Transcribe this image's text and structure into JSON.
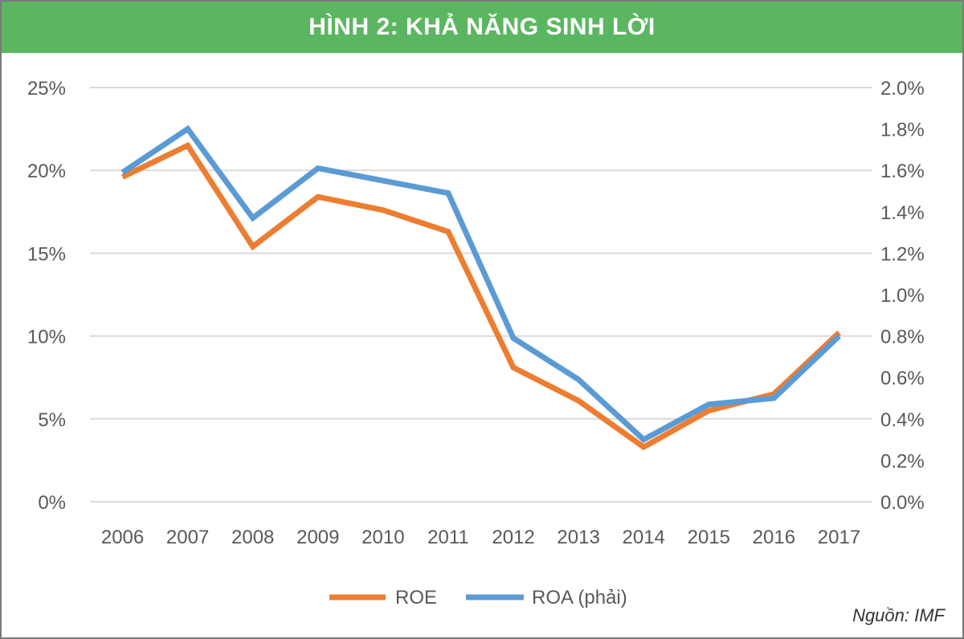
{
  "title": "HÌNH 2: KHẢ NĂNG SINH LỜI",
  "source": "Nguồn: IMF",
  "colors": {
    "header": "#5cb661",
    "ROE": "#ed7d31",
    "ROA": "#5b9bd5",
    "grid": "#d9d9d9"
  },
  "chart_data": {
    "type": "line",
    "title": "HÌNH 2: KHẢ NĂNG SINH LỜI",
    "categories": [
      "2006",
      "2007",
      "2008",
      "2009",
      "2010",
      "2011",
      "2012",
      "2013",
      "2014",
      "2015",
      "2016",
      "2017"
    ],
    "series": [
      {
        "name": "ROE",
        "axis": "left",
        "values": [
          19.6,
          21.5,
          15.4,
          18.4,
          17.6,
          16.3,
          8.1,
          6.1,
          3.3,
          5.5,
          6.5,
          10.2
        ]
      },
      {
        "name": "ROA (phải)",
        "axis": "right",
        "values": [
          1.59,
          1.8,
          1.37,
          1.61,
          1.55,
          1.49,
          0.79,
          0.59,
          0.3,
          0.47,
          0.5,
          0.8
        ]
      }
    ],
    "y_left": {
      "ylim": [
        0,
        25
      ],
      "ticks": [
        "0%",
        "5%",
        "10%",
        "15%",
        "20%",
        "25%"
      ]
    },
    "y_right": {
      "ylim": [
        0,
        2.0
      ],
      "ticks": [
        "0.0%",
        "0.2%",
        "0.4%",
        "0.6%",
        "0.8%",
        "1.0%",
        "1.2%",
        "1.4%",
        "1.6%",
        "1.8%",
        "2.0%"
      ]
    },
    "grid": true,
    "legend": "bottom"
  }
}
